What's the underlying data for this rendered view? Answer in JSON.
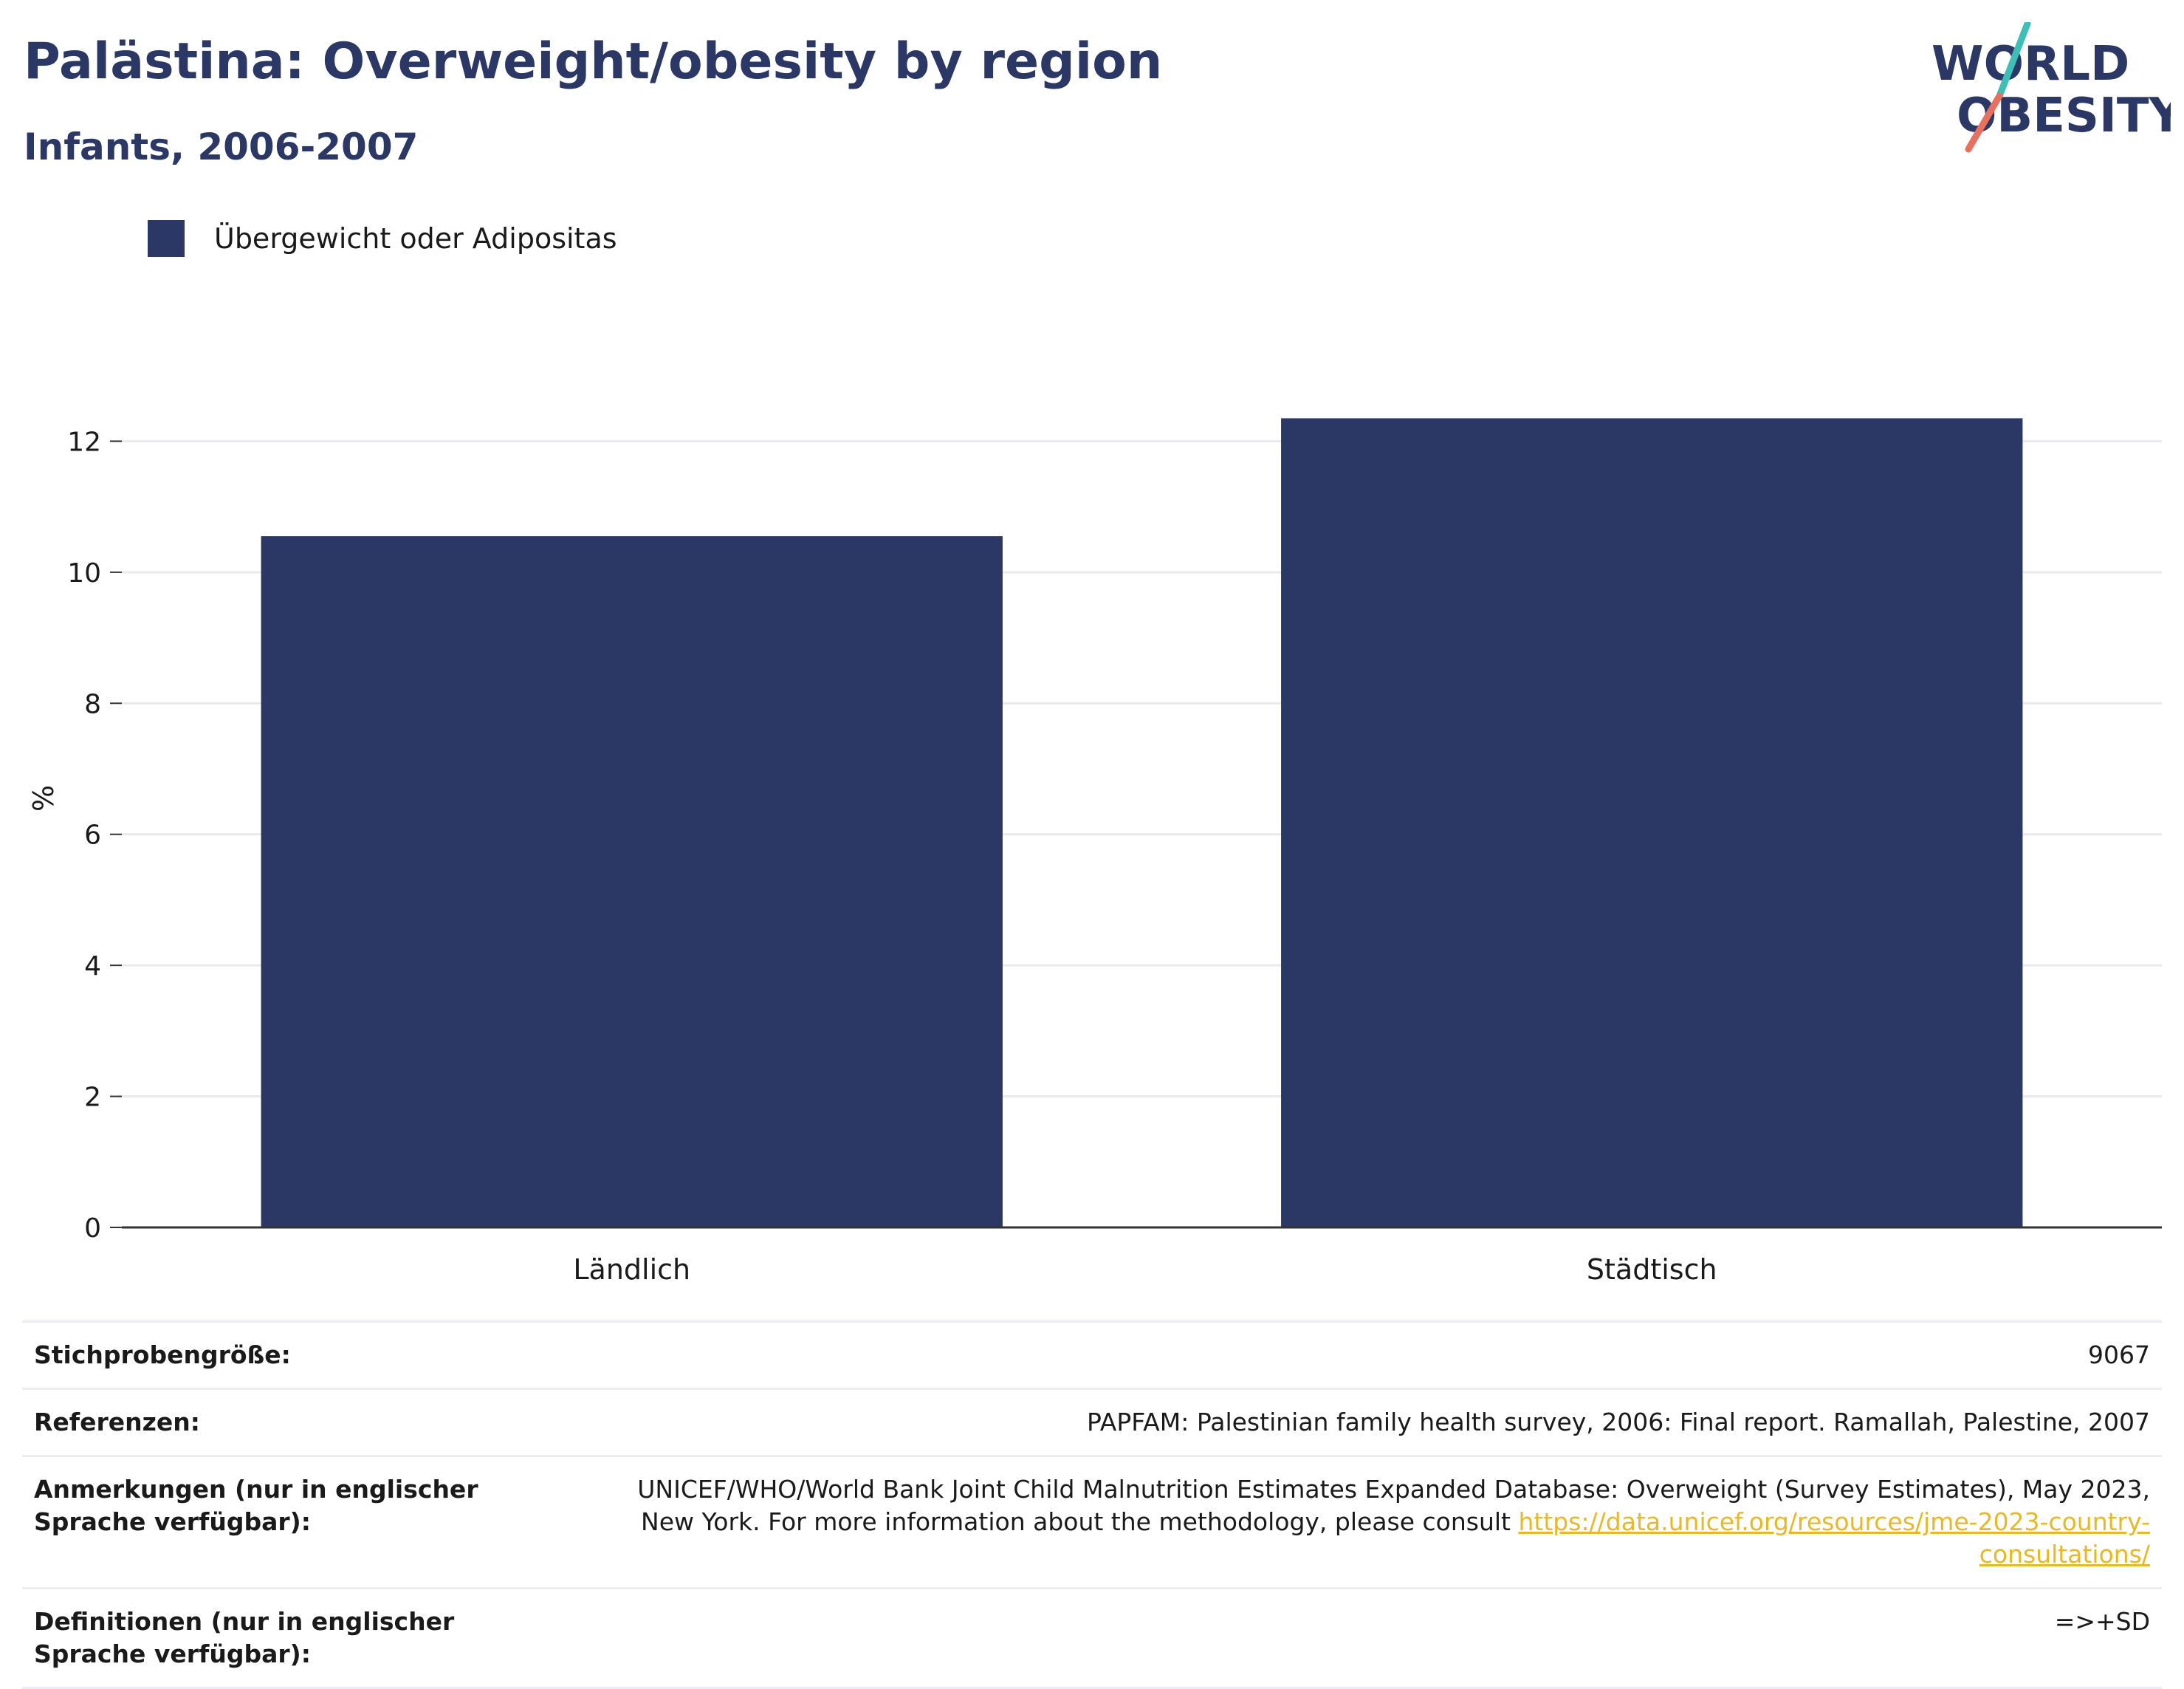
{
  "header": {
    "title": "Palästina: Overweight/obesity by region",
    "subtitle": "Infants, 2006-2007"
  },
  "logo": {
    "line1": "WORLD",
    "line2": "OBESITY",
    "accent_teal": "#3dbfb8",
    "accent_coral": "#e8705e",
    "text_color": "#2b3765"
  },
  "legend": {
    "label": "Übergewicht oder Adipositas",
    "color": "#2b3765"
  },
  "chart_data": {
    "type": "bar",
    "categories": [
      "Ländlich",
      "Städtisch"
    ],
    "series": [
      {
        "name": "Übergewicht oder Adipositas",
        "values": [
          10.55,
          12.35
        ],
        "color": "#2b3765"
      }
    ],
    "ylabel": "%",
    "ylim": [
      0,
      14
    ],
    "yticks": [
      0,
      2,
      4,
      6,
      8,
      10,
      12
    ],
    "grid": true,
    "legend_position": "top-left"
  },
  "info": {
    "sample_size_label": "Stichprobengröße:",
    "sample_size_value": "9067",
    "references_label": "Referenzen:",
    "references_value": "PAPFAM: Palestinian family health survey, 2006: Final report. Ramallah, Palestine, 2007",
    "notes_label": "Anmerkungen (nur in englischer Sprache verfügbar):",
    "notes_text": "UNICEF/WHO/World Bank Joint Child Malnutrition Estimates Expanded Database: Overweight (Survey Estimates), May 2023, New York. For more information about the methodology, please consult",
    "notes_link": "https://data.unicef.org/resources/jme-2023-country-consultations/",
    "definitions_label": "Definitionen (nur in englischer Sprache verfügbar):",
    "definitions_value": "=>+SD"
  }
}
